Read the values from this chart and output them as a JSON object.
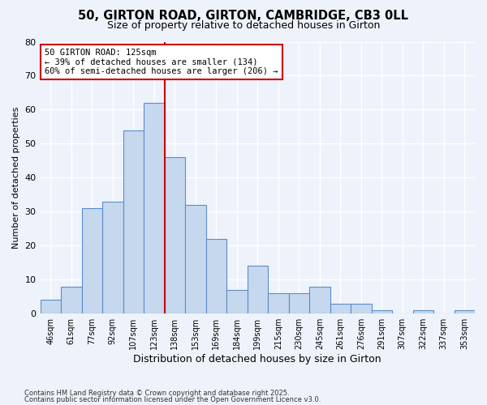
{
  "title": "50, GIRTON ROAD, GIRTON, CAMBRIDGE, CB3 0LL",
  "subtitle": "Size of property relative to detached houses in Girton",
  "xlabel": "Distribution of detached houses by size in Girton",
  "ylabel": "Number of detached properties",
  "bin_labels": [
    "46sqm",
    "61sqm",
    "77sqm",
    "92sqm",
    "107sqm",
    "123sqm",
    "138sqm",
    "153sqm",
    "169sqm",
    "184sqm",
    "199sqm",
    "215sqm",
    "230sqm",
    "245sqm",
    "261sqm",
    "276sqm",
    "291sqm",
    "307sqm",
    "322sqm",
    "337sqm",
    "353sqm"
  ],
  "bar_heights": [
    4,
    8,
    31,
    33,
    54,
    62,
    46,
    32,
    22,
    7,
    14,
    6,
    6,
    8,
    3,
    3,
    1,
    0,
    1,
    0,
    1
  ],
  "bar_color": "#c5d8ee",
  "bar_edge_color": "#5b8dc8",
  "background_color": "#eef2fa",
  "grid_color": "#ffffff",
  "vline_color": "#cc0000",
  "vline_x": 5.5,
  "annotation_title": "50 GIRTON ROAD: 125sqm",
  "annotation_line1": "← 39% of detached houses are smaller (134)",
  "annotation_line2": "60% of semi-detached houses are larger (206) →",
  "annotation_box_color": "#ffffff",
  "annotation_box_edge": "#cc0000",
  "ylim": [
    0,
    80
  ],
  "yticks": [
    0,
    10,
    20,
    30,
    40,
    50,
    60,
    70,
    80
  ],
  "footnote1": "Contains HM Land Registry data © Crown copyright and database right 2025.",
  "footnote2": "Contains public sector information licensed under the Open Government Licence v3.0."
}
